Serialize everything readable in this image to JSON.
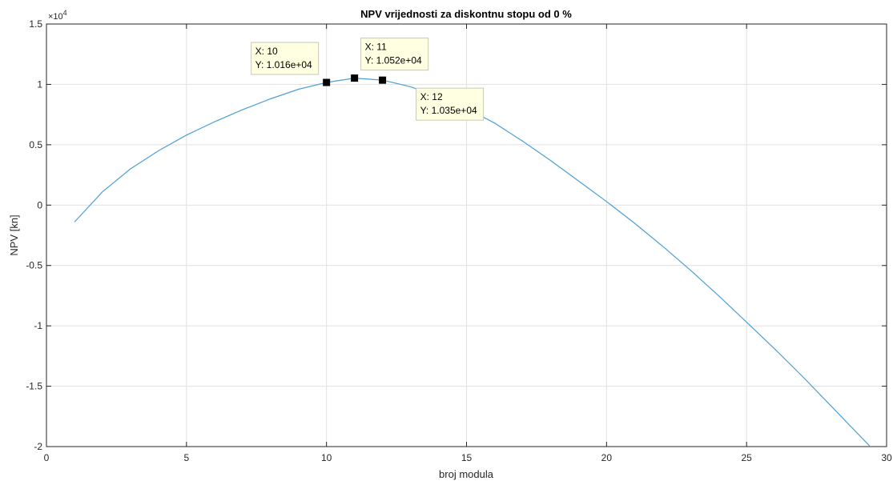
{
  "chart_data": {
    "type": "line",
    "title": "NPV vrijednosti za diskontnu stopu od 0 %",
    "xlabel": "broj modula",
    "ylabel": "NPV [kn]",
    "y_exponent_base": "×10",
    "y_exponent_power": "4",
    "xlim": [
      0,
      30
    ],
    "ylim": [
      -2,
      1.5
    ],
    "y_scale_note": "values shown in units of 10^4",
    "xticks": [
      0,
      5,
      10,
      15,
      20,
      25,
      30
    ],
    "xtick_labels": [
      "0",
      "5",
      "10",
      "15",
      "20",
      "25",
      "30"
    ],
    "yticks": [
      -2,
      -1.5,
      -1,
      -0.5,
      0,
      0.5,
      1,
      1.5
    ],
    "ytick_labels": [
      "-2",
      "-1.5",
      "-1",
      "-0.5",
      "0",
      "0.5",
      "1",
      "1.5"
    ],
    "grid": true,
    "line_color": "#4d9fd4",
    "series": [
      {
        "x": [
          1,
          2,
          3,
          4,
          5,
          6,
          7,
          8,
          9,
          10,
          11,
          12,
          13,
          14,
          15,
          16,
          17,
          18,
          19,
          20,
          21,
          22,
          23,
          24,
          25,
          26,
          27,
          28,
          29,
          30
        ],
        "values": [
          -0.14,
          0.11,
          0.3,
          0.45,
          0.58,
          0.69,
          0.79,
          0.88,
          0.96,
          1.016,
          1.052,
          1.035,
          0.98,
          0.9,
          0.8,
          0.68,
          0.53,
          0.37,
          0.2,
          0.03,
          -0.15,
          -0.34,
          -0.54,
          -0.75,
          -0.97,
          -1.19,
          -1.42,
          -1.66,
          -1.9,
          -2.14
        ]
      }
    ],
    "annotations": [
      {
        "x": 10,
        "y": 1.016,
        "x_text": "X: 10",
        "y_text": "Y: 1.016e+04"
      },
      {
        "x": 11,
        "y": 1.052,
        "x_text": "X: 11",
        "y_text": "Y: 1.052e+04"
      },
      {
        "x": 12,
        "y": 1.035,
        "x_text": "X: 12",
        "y_text": "Y: 1.035e+04"
      }
    ]
  }
}
